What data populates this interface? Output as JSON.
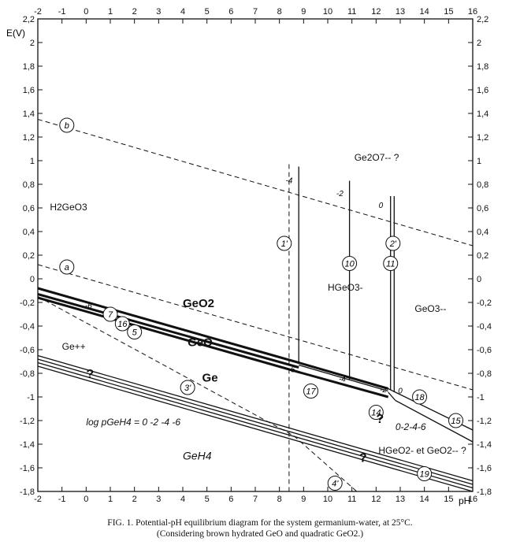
{
  "chart_data": {
    "type": "line",
    "xlabel": "pH",
    "ylabel": "E(V)",
    "xlim": [
      -2,
      16
    ],
    "ylim": [
      -1.8,
      2.2
    ],
    "x_ticks": [
      "-2",
      "-1",
      "0",
      "1",
      "2",
      "3",
      "4",
      "5",
      "6",
      "7",
      "8",
      "9",
      "10",
      "11",
      "12",
      "13",
      "14",
      "15",
      "16"
    ],
    "y_ticks": [
      "2,2",
      "2",
      "1,8",
      "1,6",
      "1,4",
      "1,2",
      "1",
      "0,8",
      "0,6",
      "0,4",
      "0,2",
      "0",
      "-0,2",
      "-0,4",
      "-0,6",
      "-0,8",
      "-1",
      "-1,2",
      "-1,4",
      "-1,6",
      "-1,8"
    ],
    "grid": false,
    "series": [
      {
        "label": "a",
        "style": "dashed",
        "x": [
          -2,
          16
        ],
        "y": [
          0.12,
          -0.94
        ]
      },
      {
        "label": "b",
        "style": "dashed",
        "x": [
          -2,
          16
        ],
        "y": [
          1.35,
          0.28
        ]
      },
      {
        "label": "7",
        "style": "thick",
        "x": [
          -2,
          8.8,
          12.5
        ],
        "y": [
          -0.08,
          -0.71,
          -0.93
        ]
      },
      {
        "label": "16",
        "style": "thick",
        "x": [
          -2,
          8.8
        ],
        "y": [
          -0.13,
          -0.75
        ]
      },
      {
        "label": "5",
        "style": "thick",
        "x": [
          -2,
          8.8,
          12.5
        ],
        "y": [
          -0.16,
          -0.79,
          -1.0
        ]
      },
      {
        "label": "17",
        "style": "solid",
        "x": [
          8.8,
          12.5
        ],
        "y": [
          -0.73,
          -0.95
        ]
      },
      {
        "label": "14",
        "style": "solid",
        "x": [
          12.5,
          12.8
        ],
        "y": [
          -0.96,
          -1.03
        ]
      },
      {
        "label": "18",
        "style": "solid",
        "x": [
          12.5,
          16
        ],
        "y": [
          -0.93,
          -1.28
        ]
      },
      {
        "label": "15",
        "style": "solid",
        "x": [
          12.8,
          16
        ],
        "y": [
          -1.03,
          -1.38
        ]
      },
      {
        "label": "3'",
        "style": "dashed",
        "x": [
          -2,
          8.6,
          11.2
        ],
        "y": [
          -0.15,
          -1.33,
          -1.8
        ]
      },
      {
        "label": "1'",
        "style": "dashed",
        "x": [
          8.4,
          8.4
        ],
        "y": [
          0.97,
          -1.8
        ]
      },
      {
        "label": "1'",
        "style": "solid",
        "x": [
          8.8,
          8.8
        ],
        "y": [
          0.95,
          -0.72
        ]
      },
      {
        "label": "10",
        "style": "solid",
        "x": [
          10.9,
          10.9
        ],
        "y": [
          0.83,
          -0.85
        ]
      },
      {
        "label": "11",
        "style": "solid",
        "x": [
          12.6,
          12.6
        ],
        "y": [
          0.7,
          -0.94
        ]
      },
      {
        "label": "2'",
        "style": "solid",
        "x": [
          12.75,
          12.75
        ],
        "y": [
          0.7,
          -0.96
        ]
      },
      {
        "label": "19",
        "style": "solid",
        "x": [
          -2,
          16
        ],
        "y": [
          -0.65,
          -1.71
        ]
      },
      {
        "label": "19",
        "style": "solid",
        "x": [
          -2,
          16
        ],
        "y": [
          -0.68,
          -1.74
        ]
      },
      {
        "label": "19",
        "style": "solid",
        "x": [
          -2,
          16
        ],
        "y": [
          -0.71,
          -1.77
        ]
      },
      {
        "label": "19",
        "style": "solid",
        "x": [
          -2,
          16
        ],
        "y": [
          -0.74,
          -1.8
        ]
      }
    ],
    "circled_labels": [
      {
        "text": "b",
        "x": -0.8,
        "y": 1.3
      },
      {
        "text": "a",
        "x": -0.8,
        "y": 0.1
      },
      {
        "text": "7",
        "x": 1.0,
        "y": -0.3
      },
      {
        "text": "16",
        "x": 1.5,
        "y": -0.38
      },
      {
        "text": "5",
        "x": 2.0,
        "y": -0.45
      },
      {
        "text": "3'",
        "x": 4.2,
        "y": -0.92
      },
      {
        "text": "1'",
        "x": 8.2,
        "y": 0.3
      },
      {
        "text": "10",
        "x": 10.9,
        "y": 0.13
      },
      {
        "text": "11",
        "x": 12.6,
        "y": 0.13
      },
      {
        "text": "2'",
        "x": 12.7,
        "y": 0.3
      },
      {
        "text": "17",
        "x": 9.3,
        "y": -0.95
      },
      {
        "text": "14",
        "x": 12.0,
        "y": -1.13
      },
      {
        "text": "18",
        "x": 13.8,
        "y": -1.0
      },
      {
        "text": "15",
        "x": 15.3,
        "y": -1.2
      },
      {
        "text": "19",
        "x": 14.0,
        "y": -1.65
      },
      {
        "text": "4'",
        "x": 10.3,
        "y": -1.73
      }
    ],
    "regions": [
      {
        "text": "H2GeO3",
        "x": -1.5,
        "y": 0.58
      },
      {
        "text": "Ge2O7-- ?",
        "x": 11.1,
        "y": 1.0
      },
      {
        "text": "GeO2",
        "x": 4.0,
        "y": -0.24
      },
      {
        "text": "HGeO3-",
        "x": 10.0,
        "y": -0.1
      },
      {
        "text": "GeO3--",
        "x": 13.6,
        "y": -0.28
      },
      {
        "text": "GeO",
        "x": 4.2,
        "y": -0.57
      },
      {
        "text": "Ge++",
        "x": -1.0,
        "y": -0.6
      },
      {
        "text": "Ge",
        "x": 4.8,
        "y": -0.87
      },
      {
        "text": "?",
        "x": 0.0,
        "y": -0.84
      },
      {
        "text": "?",
        "x": 12.0,
        "y": -1.22
      },
      {
        "text": "?",
        "x": 11.3,
        "y": -1.55
      },
      {
        "text": "HGeO2- et GeO2-- ?",
        "x": 12.1,
        "y": -1.48
      },
      {
        "text": "GeH4",
        "x": 4.0,
        "y": -1.53
      },
      {
        "text": "log pGeH4 = 0 -2 -4 -6",
        "x": 0.0,
        "y": -1.24
      },
      {
        "text": "0-2-4-6",
        "x": 12.8,
        "y": -1.28
      }
    ],
    "line_annotations": [
      {
        "text": "-6",
        "x": 0.1,
        "y": -0.25
      },
      {
        "text": "-4",
        "x": 8.4,
        "y": 0.81
      },
      {
        "text": "-2",
        "x": 10.5,
        "y": 0.7
      },
      {
        "text": "0",
        "x": 12.2,
        "y": 0.6
      },
      {
        "text": "-6",
        "x": 8.5,
        "y": -0.79
      },
      {
        "text": "-4",
        "x": 10.6,
        "y": -0.87
      },
      {
        "text": "-2",
        "x": 12.3,
        "y": -0.96
      },
      {
        "text": "0",
        "x": 13.0,
        "y": -0.97
      }
    ]
  },
  "caption": {
    "line1": "FIG. 1. Potential-pH equilibrium diagram for the system germanium-water, at 25°C.",
    "line2": "(Considering brown hydrated GeO and quadratic GeO2.)"
  }
}
